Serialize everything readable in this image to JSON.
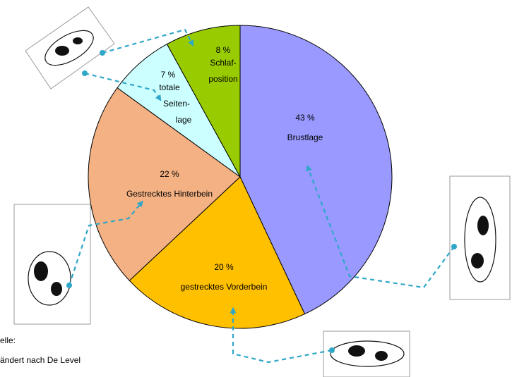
{
  "chart_data": {
    "type": "pie",
    "categories": [
      [
        "Brustlage"
      ],
      [
        "gestrecktes Vorderbein"
      ],
      [
        "Gestrecktes Hinterbein"
      ],
      [
        "totale",
        "Seiten-",
        "lage"
      ],
      [
        "Schlaf-",
        "position"
      ]
    ],
    "values": [
      43,
      20,
      22,
      7,
      8
    ],
    "value_labels": [
      "43 %",
      "20 %",
      "22 %",
      "7 %",
      "8 %"
    ],
    "colors": [
      "#9999ff",
      "#ffc000",
      "#f4b183",
      "#ccffff",
      "#99cc00"
    ],
    "source_lines": [
      "elle:",
      "ändert nach De Level"
    ]
  }
}
